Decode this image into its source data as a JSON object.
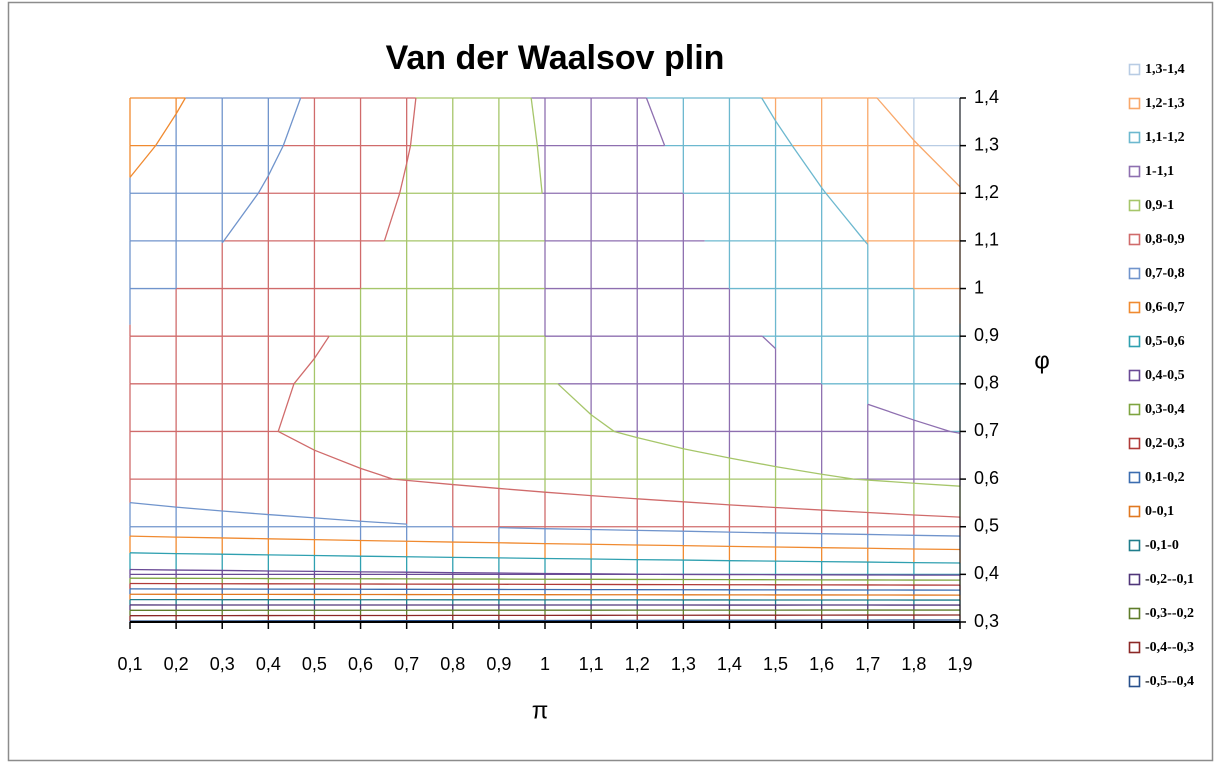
{
  "chart_data": {
    "type": "contour",
    "title": "Van der Waalsov plin",
    "x_label": "π",
    "y_label": "φ",
    "categories": [
      "0,1",
      "0,2",
      "0,3",
      "0,4",
      "0,5",
      "0,6",
      "0,7",
      "0,8",
      "0,9",
      "1",
      "1,1",
      "1,2",
      "1,3",
      "1,4",
      "1,5",
      "1,6",
      "1,7",
      "1,8",
      "1,9"
    ],
    "ylim": [
      0.3,
      1.4
    ],
    "yticks": [
      {
        "value": 0.3,
        "label": "0,3"
      },
      {
        "value": 0.4,
        "label": "0,4"
      },
      {
        "value": 0.5,
        "label": "0,5"
      },
      {
        "value": 0.6,
        "label": "0,6"
      },
      {
        "value": 0.7,
        "label": "0,7"
      },
      {
        "value": 0.8,
        "label": "0,8"
      },
      {
        "value": 0.9,
        "label": "0,9"
      },
      1,
      {
        "value": 1.1,
        "label": "1,1"
      },
      {
        "value": 1.2,
        "label": "1,2"
      },
      {
        "value": 1.3,
        "label": "1,3"
      },
      {
        "value": 1.4,
        "label": "1,4"
      }
    ],
    "z": [
      [
        -0.418,
        -0.419,
        -0.42,
        -0.422,
        -0.423,
        -0.424,
        -0.425,
        -0.427,
        -0.428,
        -0.429,
        -0.43,
        -0.432,
        -0.433,
        -0.434,
        -0.435,
        -0.437,
        -0.438,
        -0.439,
        -0.44
      ],
      [
        0.471,
        0.474,
        0.476,
        0.479,
        0.481,
        0.484,
        0.486,
        0.489,
        0.491,
        0.494,
        0.496,
        0.499,
        0.501,
        0.504,
        0.506,
        0.509,
        0.511,
        0.514,
        0.516
      ],
      [
        0.756,
        0.763,
        0.769,
        0.775,
        0.781,
        0.788,
        0.794,
        0.8,
        0.806,
        0.813,
        0.819,
        0.825,
        0.831,
        0.838,
        0.844,
        0.85,
        0.856,
        0.863,
        0.869
      ],
      [
        0.843,
        0.853,
        0.863,
        0.873,
        0.883,
        0.893,
        0.903,
        0.913,
        0.923,
        0.933,
        0.943,
        0.953,
        0.963,
        0.973,
        0.983,
        0.993,
        1.003,
        1.013,
        1.023
      ],
      [
        0.856,
        0.869,
        0.883,
        0.897,
        0.911,
        0.924,
        0.938,
        0.952,
        0.966,
        0.979,
        0.993,
        1.007,
        1.021,
        1.034,
        1.048,
        1.062,
        1.076,
        1.089,
        1.103
      ],
      [
        0.838,
        0.855,
        0.873,
        0.89,
        0.908,
        0.925,
        0.943,
        0.96,
        0.978,
        0.995,
        1.013,
        1.03,
        1.048,
        1.065,
        1.083,
        1.1,
        1.118,
        1.135,
        1.153
      ],
      [
        0.808,
        0.83,
        0.851,
        0.872,
        0.893,
        0.915,
        0.936,
        0.957,
        0.978,
        1.0,
        1.021,
        1.042,
        1.063,
        1.085,
        1.106,
        1.127,
        1.148,
        1.17,
        1.191
      ],
      [
        0.775,
        0.8,
        0.825,
        0.85,
        0.875,
        0.9,
        0.925,
        0.95,
        0.975,
        1.0,
        1.025,
        1.05,
        1.075,
        1.1,
        1.125,
        1.15,
        1.175,
        1.2,
        1.225
      ],
      [
        0.742,
        0.77,
        0.799,
        0.828,
        0.857,
        0.885,
        0.914,
        0.943,
        0.972,
        1.0,
        1.029,
        1.058,
        1.087,
        1.115,
        1.144,
        1.173,
        1.202,
        1.23,
        1.259
      ],
      [
        0.71,
        0.742,
        0.775,
        0.807,
        0.84,
        0.872,
        0.905,
        0.937,
        0.97,
        1.002,
        1.035,
        1.067,
        1.1,
        1.132,
        1.165,
        1.197,
        1.23,
        1.262,
        1.295
      ],
      [
        0.68,
        0.716,
        0.752,
        0.788,
        0.825,
        0.861,
        0.897,
        0.933,
        0.97,
        1.006,
        1.042,
        1.078,
        1.115,
        1.151,
        1.187,
        1.223,
        1.26,
        1.296,
        1.332
      ],
      [
        0.652,
        0.692,
        0.732,
        0.772,
        0.812,
        0.852,
        0.892,
        0.932,
        0.972,
        1.012,
        1.052,
        1.092,
        1.132,
        1.172,
        1.212,
        1.252,
        1.292,
        1.332,
        1.372
      ]
    ],
    "levels": [
      1.4,
      1.3,
      1.2,
      1.1,
      1,
      0.9,
      0.8,
      0.7,
      0.6,
      0.5,
      0.4,
      0.3,
      0.2,
      0.1,
      0,
      -0.1,
      -0.2,
      -0.3,
      -0.4,
      -0.5
    ],
    "series": [
      {
        "name": "1,3-1,4",
        "color": "#b8cce4"
      },
      {
        "name": "1,2-1,3",
        "color": "#f9a86a"
      },
      {
        "name": "1,1-1,2",
        "color": "#6cb8cf"
      },
      {
        "name": "1-1,1",
        "color": "#8e6fb0"
      },
      {
        "name": "0,9-1",
        "color": "#a6c66a"
      },
      {
        "name": "0,8-0,9",
        "color": "#d06b6b"
      },
      {
        "name": "0,7-0,8",
        "color": "#7094cc"
      },
      {
        "name": "0,6-0,7",
        "color": "#f08a30"
      },
      {
        "name": "0,5-0,6",
        "color": "#2fa0b0"
      },
      {
        "name": "0,4-0,5",
        "color": "#6a4a96"
      },
      {
        "name": "0,3-0,4",
        "color": "#7ea440"
      },
      {
        "name": "0,2-0,3",
        "color": "#b03a38"
      },
      {
        "name": "0,1-0,2",
        "color": "#3b6db0"
      },
      {
        "name": "0-0,1",
        "color": "#e07820"
      },
      {
        "name": "-0,1-0",
        "color": "#1f7d8c"
      },
      {
        "name": "-0,2--0,1",
        "color": "#50367a"
      },
      {
        "name": "-0,3--0,2",
        "color": "#5f7c2a"
      },
      {
        "name": "-0,4--0,3",
        "color": "#8c2826"
      },
      {
        "name": "-0,5--0,4",
        "color": "#28508c"
      }
    ],
    "legend": "right"
  }
}
